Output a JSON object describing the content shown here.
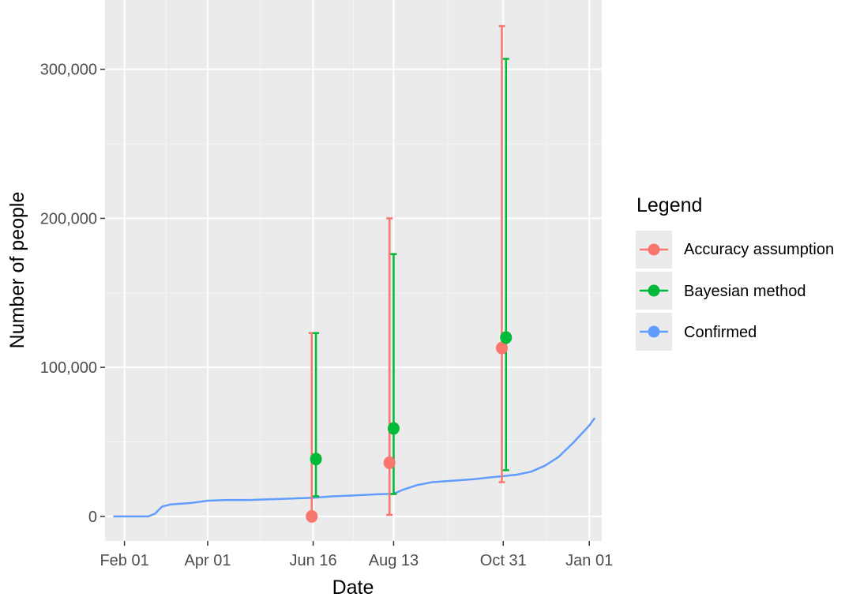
{
  "chart_data": {
    "type": "scatter",
    "title": "",
    "xlabel": "Date",
    "ylabel": "Number of people",
    "x_ticks": [
      "Feb 01",
      "Apr 01",
      "Jun 16",
      "Aug 13",
      "Oct 31",
      "Jan 01"
    ],
    "x_tick_dates": [
      "2020-02-01",
      "2020-04-01",
      "2020-06-16",
      "2020-08-13",
      "2020-10-31",
      "2021-01-01"
    ],
    "xlim": [
      "2020-01-18",
      "2021-01-10"
    ],
    "y_ticks": [
      "0",
      "100,000",
      "200,000",
      "300,000"
    ],
    "y_tick_values": [
      0,
      100000,
      200000,
      300000
    ],
    "ylim": [
      -16500,
      346500
    ],
    "grid": true,
    "legend": {
      "title": "Legend",
      "position": "right",
      "entries": [
        "Accuracy assumption",
        "Bayesian method",
        "Confirmed"
      ]
    },
    "colors": {
      "accuracy": "#F8766D",
      "bayesian": "#00BA38",
      "confirmed": "#619CFF",
      "panel": "#EBEBEB",
      "grid_major": "#FFFFFF",
      "grid_minor": "#F5F5F5"
    },
    "series": [
      {
        "name": "Accuracy assumption",
        "type": "pointrange",
        "points": [
          {
            "x": "2020-06-15",
            "y": 0,
            "lower": 0,
            "upper": 123000
          },
          {
            "x": "2020-08-10",
            "y": 36000,
            "lower": 1000,
            "upper": 200000
          },
          {
            "x": "2020-10-30",
            "y": 113000,
            "lower": 23000,
            "upper": 329000
          }
        ]
      },
      {
        "name": "Bayesian method",
        "type": "pointrange",
        "points": [
          {
            "x": "2020-06-18",
            "y": 38500,
            "lower": 13500,
            "upper": 123000
          },
          {
            "x": "2020-08-13",
            "y": 59000,
            "lower": 15000,
            "upper": 176000
          },
          {
            "x": "2020-11-02",
            "y": 120000,
            "lower": 31000,
            "upper": 307000
          }
        ]
      },
      {
        "name": "Confirmed",
        "type": "line",
        "x": [
          "2020-01-24",
          "2020-02-01",
          "2020-02-10",
          "2020-02-18",
          "2020-02-23",
          "2020-02-28",
          "2020-03-05",
          "2020-03-20",
          "2020-04-01",
          "2020-04-15",
          "2020-05-01",
          "2020-05-15",
          "2020-06-01",
          "2020-06-16",
          "2020-07-01",
          "2020-07-15",
          "2020-08-01",
          "2020-08-13",
          "2020-08-20",
          "2020-08-30",
          "2020-09-10",
          "2020-09-25",
          "2020-10-10",
          "2020-10-20",
          "2020-10-31",
          "2020-11-10",
          "2020-11-20",
          "2020-11-30",
          "2020-12-10",
          "2020-12-20",
          "2021-01-01",
          "2021-01-05"
        ],
        "y": [
          0,
          0,
          0,
          0,
          1800,
          6500,
          8000,
          9000,
          10500,
          11000,
          11000,
          11500,
          12000,
          12500,
          13500,
          14000,
          14800,
          15200,
          18000,
          21000,
          23000,
          24000,
          25000,
          26000,
          27000,
          28000,
          30000,
          34000,
          40000,
          49000,
          61000,
          66000
        ]
      }
    ]
  }
}
